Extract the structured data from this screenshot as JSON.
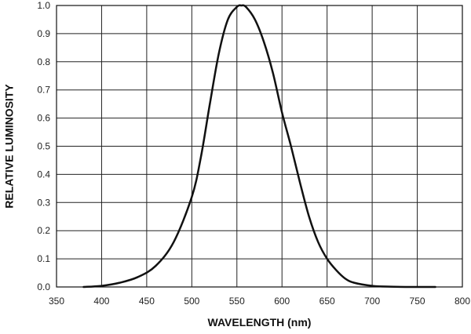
{
  "chart_data": {
    "type": "line",
    "title": "",
    "xlabel": "WAVELENGTH (nm)",
    "ylabel": "RELATIVE LUMINOSITY",
    "xlim": [
      350,
      800
    ],
    "ylim": [
      0,
      1
    ],
    "xticks": [
      "350",
      "400",
      "450",
      "500",
      "550",
      "600",
      "650",
      "700",
      "750",
      "800"
    ],
    "yticks": [
      "0.0",
      "0.1",
      "0.2",
      "0.3",
      "0.4",
      "0.5",
      "0.6",
      "0.7",
      "0.8",
      "0.9",
      "1.0"
    ],
    "grid": true,
    "series": [
      {
        "x": [
          380,
          400,
          420,
          440,
          460,
          480,
          500,
          510,
          520,
          530,
          540,
          550,
          555,
          560,
          570,
          580,
          590,
          600,
          610,
          620,
          630,
          640,
          650,
          660,
          670,
          680,
          700,
          720,
          750,
          770
        ],
        "y": [
          0.0,
          0.004,
          0.015,
          0.035,
          0.075,
          0.16,
          0.32,
          0.46,
          0.65,
          0.83,
          0.95,
          0.995,
          1.0,
          0.995,
          0.95,
          0.87,
          0.76,
          0.62,
          0.5,
          0.37,
          0.25,
          0.16,
          0.1,
          0.06,
          0.03,
          0.015,
          0.004,
          0.001,
          0.0,
          0.0
        ],
        "color": "#111111"
      }
    ]
  }
}
